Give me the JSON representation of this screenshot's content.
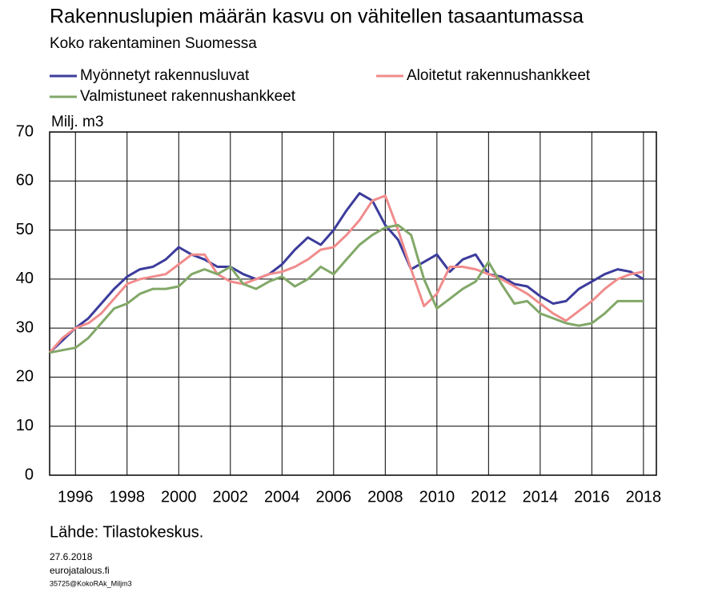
{
  "chart_data": {
    "type": "line",
    "title": "Rakennuslupien määrän kasvu on vähitellen tasaantumassa",
    "subtitle": "Koko rakentaminen Suomessa",
    "y_label": "Milj. m3",
    "source": "Lähde: Tilastokeskus.",
    "footer": [
      "27.6.2018",
      "eurojatalous.fi",
      "35725@KokoRAk_Miljm3"
    ],
    "x": [
      1995,
      1995.5,
      1996,
      1996.5,
      1997,
      1997.5,
      1998,
      1998.5,
      1999,
      1999.5,
      2000,
      2000.5,
      2001,
      2001.5,
      2002,
      2002.5,
      2003,
      2003.5,
      2004,
      2004.5,
      2005,
      2005.5,
      2006,
      2006.5,
      2007,
      2007.5,
      2008,
      2008.5,
      2009,
      2009.5,
      2010,
      2010.5,
      2011,
      2011.5,
      2012,
      2012.5,
      2013,
      2013.5,
      2014,
      2014.5,
      2015,
      2015.5,
      2016,
      2016.5,
      2017,
      2017.5,
      2018
    ],
    "series": [
      {
        "name": "Myönnetyt rakennusluvat",
        "color": "#3c3c9c",
        "values": [
          25,
          27.5,
          30,
          32,
          35,
          38,
          40.5,
          42,
          42.5,
          44,
          46.5,
          45,
          44,
          42.5,
          42.5,
          41,
          40,
          41,
          43,
          46,
          48.5,
          47,
          50,
          54,
          57.5,
          56,
          51,
          48,
          42,
          43.5,
          45,
          41.5,
          44,
          45,
          41,
          40.5,
          39,
          38.5,
          36.5,
          35,
          35.5,
          38,
          39.5,
          41,
          42,
          41.5,
          40
        ]
      },
      {
        "name": "Aloitetut rakennushankkeet",
        "color": "#f08c8c",
        "values": [
          25,
          28,
          30,
          31,
          33,
          36,
          39,
          40,
          40.5,
          41,
          43,
          45,
          45,
          41,
          39.5,
          39,
          40,
          41,
          41.5,
          42.5,
          44,
          46,
          46.5,
          49,
          52,
          56,
          57,
          50,
          42,
          34.5,
          37,
          42.5,
          42.5,
          42,
          41,
          40,
          38.5,
          37,
          35,
          33,
          31.5,
          33.5,
          35.5,
          38,
          40,
          41,
          41.5
        ]
      },
      {
        "name": "Valmistuneet rakennushankkeet",
        "color": "#82a868",
        "values": [
          25,
          25.5,
          26,
          28,
          31,
          34,
          35,
          37,
          38,
          38,
          38.5,
          41,
          42,
          41,
          42.5,
          39,
          38,
          39.5,
          40.5,
          38.5,
          40,
          42.5,
          41,
          44,
          47,
          49,
          50.5,
          51,
          49,
          40,
          34,
          36,
          38,
          39.5,
          43.5,
          39,
          35,
          35.5,
          33,
          32,
          31,
          30.5,
          31,
          33,
          35.5,
          35.5,
          35.5
        ]
      }
    ],
    "xlim": [
      1995,
      2018.5
    ],
    "xticks": [
      1996,
      1998,
      2000,
      2002,
      2004,
      2006,
      2008,
      2010,
      2012,
      2014,
      2016,
      2018
    ],
    "ylim": [
      0,
      70
    ],
    "yticks": [
      0,
      10,
      20,
      30,
      40,
      50,
      60,
      70
    ],
    "grid": true
  }
}
